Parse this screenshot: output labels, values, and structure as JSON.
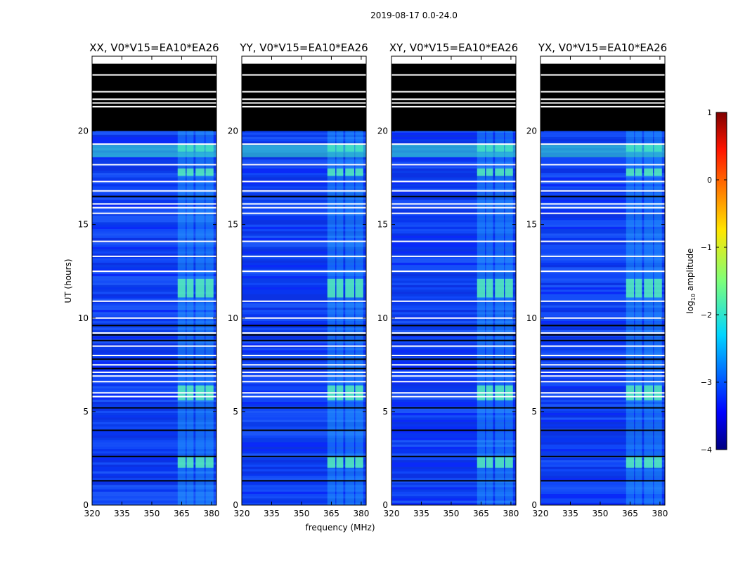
{
  "figure_title": "2019-08-17 0.0-24.0",
  "chart_data": {
    "type": "heatmap",
    "suptitle": "2019-08-17 0.0-24.0",
    "xlabel": "frequency (MHz)",
    "ylabel": "UT (hours)",
    "xlim": [
      320,
      382.5
    ],
    "ylim": [
      0,
      24
    ],
    "xticks": [
      320,
      335,
      350,
      365,
      380
    ],
    "yticks": [
      0,
      5,
      10,
      15,
      20
    ],
    "colorbar": {
      "label": "log",
      "label_sub": "10",
      "label_rest": " amplitude",
      "range": [
        -4,
        1
      ],
      "ticks": [
        1,
        0,
        -1,
        -2,
        -3,
        -4
      ],
      "colormap": "jet"
    },
    "panels": [
      {
        "title": "XX, V0*V15=EA10*EA26"
      },
      {
        "title": "YY, V0*V15=EA10*EA26"
      },
      {
        "title": "XY, V0*V15=EA10*EA26"
      },
      {
        "title": "YX, V0*V15=EA10*EA26"
      }
    ],
    "no_data_hours": [
      20,
      23.6
    ],
    "flagged_hours": [
      21.3,
      21.5,
      21.7,
      22.1,
      23.0,
      19.3,
      18.2,
      17.3,
      16.8,
      16.1,
      15.9,
      15.6,
      14.1,
      13.3,
      12.5,
      10.9,
      10.0,
      9.2,
      8.5,
      8.0,
      7.5,
      7.1,
      6.9,
      6.6,
      6.0,
      5.8
    ],
    "dark_gap_hours": [
      16.5,
      9.6,
      9.1,
      8.8,
      7.8,
      7.3,
      5.2,
      4.0,
      2.6,
      1.3
    ],
    "rfi_band_mhz": [
      [
        363,
        367
      ],
      [
        367.5,
        371
      ],
      [
        372,
        376.5
      ],
      [
        377,
        381
      ]
    ],
    "bright_events_hours": [
      [
        18.9,
        19.3
      ],
      [
        17.6,
        18.0
      ],
      [
        11.1,
        12.1
      ],
      [
        5.6,
        6.4
      ],
      [
        2.0,
        2.6
      ]
    ]
  }
}
